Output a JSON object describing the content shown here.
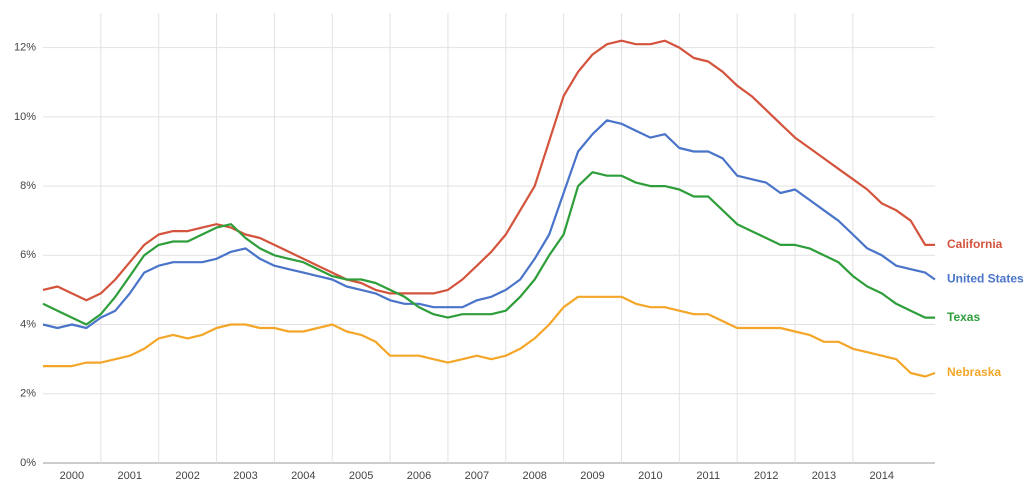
{
  "chart_data": {
    "type": "line",
    "x": [
      2000,
      2000.25,
      2000.5,
      2000.75,
      2001,
      2001.25,
      2001.5,
      2001.75,
      2002,
      2002.25,
      2002.5,
      2002.75,
      2003,
      2003.25,
      2003.5,
      2003.75,
      2004,
      2004.25,
      2004.5,
      2004.75,
      2005,
      2005.25,
      2005.5,
      2005.75,
      2006,
      2006.25,
      2006.5,
      2006.75,
      2007,
      2007.25,
      2007.5,
      2007.75,
      2008,
      2008.25,
      2008.5,
      2008.75,
      2009,
      2009.25,
      2009.5,
      2009.75,
      2010,
      2010.25,
      2010.5,
      2010.75,
      2011,
      2011.25,
      2011.5,
      2011.75,
      2012,
      2012.25,
      2012.5,
      2012.75,
      2013,
      2013.25,
      2013.5,
      2013.75,
      2014,
      2014.25,
      2014.5,
      2014.75,
      2015,
      2015.25,
      2015.42
    ],
    "xlim": [
      2000,
      2015.42
    ],
    "xticks": [
      2000,
      2001,
      2002,
      2003,
      2004,
      2005,
      2006,
      2007,
      2008,
      2009,
      2010,
      2011,
      2012,
      2013,
      2014
    ],
    "ylim": [
      0,
      13
    ],
    "yticks": [
      {
        "value": 0,
        "label": "0%"
      },
      {
        "value": 2,
        "label": "2%"
      },
      {
        "value": 4,
        "label": "4%"
      },
      {
        "value": 6,
        "label": "6%"
      },
      {
        "value": 8,
        "label": "8%"
      },
      {
        "value": 10,
        "label": "10%"
      },
      {
        "value": 12,
        "label": "12%"
      }
    ],
    "grid": true,
    "series": [
      {
        "name": "California",
        "color": "#d4533c",
        "values": [
          5.0,
          5.1,
          4.9,
          4.7,
          4.9,
          5.3,
          5.8,
          6.3,
          6.6,
          6.7,
          6.7,
          6.8,
          6.9,
          6.8,
          6.6,
          6.5,
          6.3,
          6.1,
          5.9,
          5.7,
          5.5,
          5.3,
          5.2,
          5.0,
          4.9,
          4.9,
          4.9,
          4.9,
          5.0,
          5.3,
          5.7,
          6.1,
          6.6,
          7.3,
          8.0,
          9.3,
          10.6,
          11.3,
          11.8,
          12.1,
          12.2,
          12.1,
          12.1,
          12.2,
          12.0,
          11.7,
          11.6,
          11.3,
          10.9,
          10.6,
          10.2,
          9.8,
          9.4,
          9.1,
          8.8,
          8.5,
          8.2,
          7.9,
          7.5,
          7.3,
          7.0,
          6.3,
          6.3
        ]
      },
      {
        "name": "United States",
        "color": "#4a74c9",
        "values": [
          4.0,
          3.9,
          4.0,
          3.9,
          4.2,
          4.4,
          4.9,
          5.5,
          5.7,
          5.8,
          5.8,
          5.8,
          5.9,
          6.1,
          6.2,
          5.9,
          5.7,
          5.6,
          5.5,
          5.4,
          5.3,
          5.1,
          5.0,
          4.9,
          4.7,
          4.6,
          4.6,
          4.5,
          4.5,
          4.5,
          4.7,
          4.8,
          5.0,
          5.3,
          5.9,
          6.6,
          7.8,
          9.0,
          9.5,
          9.9,
          9.8,
          9.6,
          9.4,
          9.5,
          9.1,
          9.0,
          9.0,
          8.8,
          8.3,
          8.2,
          8.1,
          7.8,
          7.9,
          7.6,
          7.3,
          7.0,
          6.6,
          6.2,
          6.0,
          5.7,
          5.6,
          5.5,
          5.3
        ]
      },
      {
        "name": "Texas",
        "color": "#2e9e3a",
        "values": [
          4.6,
          4.4,
          4.2,
          4.0,
          4.3,
          4.8,
          5.4,
          6.0,
          6.3,
          6.4,
          6.4,
          6.6,
          6.8,
          6.9,
          6.5,
          6.2,
          6.0,
          5.9,
          5.8,
          5.6,
          5.4,
          5.3,
          5.3,
          5.2,
          5.0,
          4.8,
          4.5,
          4.3,
          4.2,
          4.3,
          4.3,
          4.3,
          4.4,
          4.8,
          5.3,
          6.0,
          6.6,
          8.0,
          8.4,
          8.3,
          8.3,
          8.1,
          8.0,
          8.0,
          7.9,
          7.7,
          7.7,
          7.3,
          6.9,
          6.7,
          6.5,
          6.3,
          6.3,
          6.2,
          6.0,
          5.8,
          5.4,
          5.1,
          4.9,
          4.6,
          4.4,
          4.2,
          4.2
        ]
      },
      {
        "name": "Nebraska",
        "color": "#f4a629",
        "values": [
          2.8,
          2.8,
          2.8,
          2.9,
          2.9,
          3.0,
          3.1,
          3.3,
          3.6,
          3.7,
          3.6,
          3.7,
          3.9,
          4.0,
          4.0,
          3.9,
          3.9,
          3.8,
          3.8,
          3.9,
          4.0,
          3.8,
          3.7,
          3.5,
          3.1,
          3.1,
          3.1,
          3.0,
          2.9,
          3.0,
          3.1,
          3.0,
          3.1,
          3.3,
          3.6,
          4.0,
          4.5,
          4.8,
          4.8,
          4.8,
          4.8,
          4.6,
          4.5,
          4.5,
          4.4,
          4.3,
          4.3,
          4.1,
          3.9,
          3.9,
          3.9,
          3.9,
          3.8,
          3.7,
          3.5,
          3.5,
          3.3,
          3.2,
          3.1,
          3.0,
          2.6,
          2.5,
          2.6
        ]
      }
    ]
  }
}
